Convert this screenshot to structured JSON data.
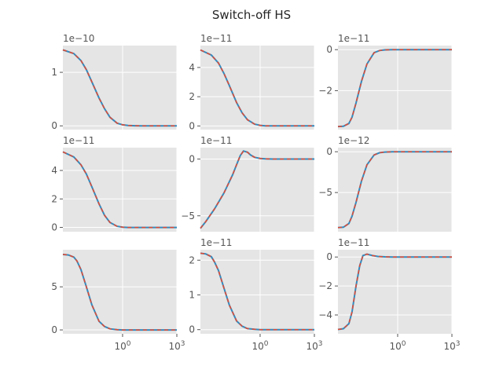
{
  "figure": {
    "suptitle": "Switch-off HS"
  },
  "colors": {
    "background": "#e5e5e5",
    "grid": "#ffffff",
    "solid": "#348abd",
    "dashed": "#e24a33",
    "text": "#555555"
  },
  "chart_data": [
    {
      "type": "line",
      "offset": "1e−10",
      "xscale": "log",
      "xlim": [
        0.0005,
        1000
      ],
      "ylim": [
        -0.07,
        1.5
      ],
      "yticks": [
        {
          "v": 0,
          "label": "0"
        },
        {
          "v": 1,
          "label": "1"
        }
      ],
      "xticks": [],
      "x": [
        0.0005,
        0.002,
        0.005,
        0.01,
        0.02,
        0.05,
        0.1,
        0.2,
        0.5,
        1,
        2,
        5,
        10,
        100,
        1000
      ],
      "series": [
        {
          "values": [
            1.42,
            1.35,
            1.22,
            1.05,
            0.82,
            0.52,
            0.32,
            0.16,
            0.05,
            0.02,
            0.006,
            0.002,
            0.0,
            0.0,
            0.0
          ]
        }
      ]
    },
    {
      "type": "line",
      "offset": "1e−11",
      "xscale": "log",
      "xlim": [
        0.0005,
        1000
      ],
      "ylim": [
        -0.25,
        5.5
      ],
      "yticks": [
        {
          "v": 0,
          "label": "0"
        },
        {
          "v": 2,
          "label": "2"
        },
        {
          "v": 4,
          "label": "4"
        }
      ],
      "xticks": [],
      "x": [
        0.0005,
        0.002,
        0.005,
        0.01,
        0.02,
        0.05,
        0.1,
        0.2,
        0.5,
        1,
        2,
        5,
        10,
        100,
        1000
      ],
      "series": [
        {
          "values": [
            5.2,
            4.85,
            4.3,
            3.6,
            2.75,
            1.6,
            0.9,
            0.42,
            0.12,
            0.04,
            0.01,
            0.0,
            0.0,
            0.0,
            0.0
          ]
        }
      ]
    },
    {
      "type": "line",
      "offset": "1e−11",
      "xscale": "log",
      "xlim": [
        0.0005,
        1000
      ],
      "ylim": [
        -3.9,
        0.2
      ],
      "yticks": [
        {
          "v": -2,
          "label": "−2"
        },
        {
          "v": 0,
          "label": "0"
        }
      ],
      "xticks": [],
      "x": [
        0.0005,
        0.001,
        0.002,
        0.003,
        0.005,
        0.01,
        0.02,
        0.05,
        0.1,
        0.2,
        0.5,
        1,
        10,
        100,
        1000
      ],
      "series": [
        {
          "values": [
            -3.75,
            -3.74,
            -3.6,
            -3.3,
            -2.6,
            -1.55,
            -0.7,
            -0.15,
            -0.04,
            -0.01,
            0.0,
            0.0,
            0.0,
            0.0,
            0.0
          ]
        }
      ]
    },
    {
      "type": "line",
      "offset": "1e−11",
      "xscale": "log",
      "xlim": [
        0.0005,
        1000
      ],
      "ylim": [
        -0.3,
        5.6
      ],
      "yticks": [
        {
          "v": 0,
          "label": "0"
        },
        {
          "v": 2,
          "label": "2"
        },
        {
          "v": 4,
          "label": "4"
        }
      ],
      "xticks": [],
      "x": [
        0.0005,
        0.002,
        0.005,
        0.01,
        0.02,
        0.05,
        0.1,
        0.2,
        0.5,
        1,
        2,
        5,
        10,
        100,
        1000
      ],
      "series": [
        {
          "values": [
            5.3,
            4.95,
            4.4,
            3.75,
            2.85,
            1.65,
            0.85,
            0.35,
            0.08,
            0.02,
            0.0,
            0.0,
            0.0,
            0.0,
            0.0
          ]
        }
      ]
    },
    {
      "type": "line",
      "offset": "1e−11",
      "xscale": "log",
      "xlim": [
        0.0005,
        1000
      ],
      "ylim": [
        -6.4,
        1.0
      ],
      "yticks": [
        {
          "v": -5,
          "label": "−5"
        },
        {
          "v": 0,
          "label": "0"
        }
      ],
      "xticks": [],
      "x": [
        0.0005,
        0.001,
        0.003,
        0.01,
        0.03,
        0.05,
        0.08,
        0.12,
        0.2,
        0.3,
        0.5,
        1,
        2,
        5,
        10,
        100,
        1000
      ],
      "series": [
        {
          "values": [
            -6.1,
            -5.5,
            -4.4,
            -3.0,
            -1.4,
            -0.5,
            0.3,
            0.7,
            0.6,
            0.35,
            0.15,
            0.05,
            0.02,
            0.0,
            0.0,
            0.0,
            0.0
          ]
        }
      ]
    },
    {
      "type": "line",
      "offset": "1e−12",
      "xscale": "log",
      "xlim": [
        0.0005,
        1000
      ],
      "ylim": [
        -9.8,
        0.5
      ],
      "yticks": [
        {
          "v": -5,
          "label": "−5"
        },
        {
          "v": 0,
          "label": "0"
        }
      ],
      "xticks": [],
      "x": [
        0.0005,
        0.001,
        0.002,
        0.003,
        0.005,
        0.01,
        0.02,
        0.05,
        0.1,
        0.2,
        0.5,
        1,
        10,
        100,
        1000
      ],
      "series": [
        {
          "values": [
            -9.3,
            -9.25,
            -8.8,
            -7.9,
            -6.2,
            -3.6,
            -1.6,
            -0.4,
            -0.12,
            -0.04,
            -0.01,
            0.0,
            0.0,
            0.0,
            0.0
          ]
        }
      ]
    },
    {
      "type": "line",
      "offset": "",
      "xscale": "log",
      "xlim": [
        0.0005,
        1000
      ],
      "ylim": [
        -0.45,
        9.3
      ],
      "yticks": [
        {
          "v": 0,
          "label": "0"
        },
        {
          "v": 5,
          "label": "5"
        }
      ],
      "xticks": [
        {
          "v": 1,
          "label": "10^0"
        },
        {
          "v": 1000,
          "label": "10^3"
        }
      ],
      "x": [
        0.0005,
        0.001,
        0.002,
        0.003,
        0.005,
        0.01,
        0.02,
        0.05,
        0.1,
        0.2,
        0.5,
        1,
        10,
        100,
        1000
      ],
      "series": [
        {
          "values": [
            8.75,
            8.7,
            8.45,
            8.0,
            7.0,
            5.0,
            2.9,
            1.0,
            0.4,
            0.12,
            0.02,
            0.0,
            0.0,
            0.0,
            0.0
          ]
        }
      ]
    },
    {
      "type": "line",
      "offset": "1e−11",
      "xscale": "log",
      "xlim": [
        0.0005,
        1000
      ],
      "ylim": [
        -0.12,
        2.3
      ],
      "yticks": [
        {
          "v": 0,
          "label": "0"
        },
        {
          "v": 1,
          "label": "1"
        },
        {
          "v": 2,
          "label": "2"
        }
      ],
      "xticks": [
        {
          "v": 1,
          "label": "10^0"
        },
        {
          "v": 1000,
          "label": "10^3"
        }
      ],
      "x": [
        0.0005,
        0.001,
        0.002,
        0.003,
        0.005,
        0.01,
        0.02,
        0.05,
        0.1,
        0.2,
        0.5,
        1,
        10,
        100,
        1000
      ],
      "series": [
        {
          "values": [
            2.2,
            2.18,
            2.1,
            1.95,
            1.7,
            1.2,
            0.7,
            0.25,
            0.1,
            0.03,
            0.01,
            0.0,
            0.0,
            0.0,
            0.0
          ]
        }
      ]
    },
    {
      "type": "line",
      "offset": "1e−11",
      "xscale": "log",
      "xlim": [
        0.0005,
        1000
      ],
      "ylim": [
        -5.3,
        0.5
      ],
      "yticks": [
        {
          "v": -4,
          "label": "−4"
        },
        {
          "v": -2,
          "label": "−2"
        },
        {
          "v": 0,
          "label": "0"
        }
      ],
      "xticks": [
        {
          "v": 1,
          "label": "10^0"
        },
        {
          "v": 1000,
          "label": "10^3"
        }
      ],
      "x": [
        0.0005,
        0.001,
        0.002,
        0.003,
        0.005,
        0.008,
        0.012,
        0.02,
        0.04,
        0.08,
        0.2,
        0.5,
        1,
        10,
        100,
        1000
      ],
      "series": [
        {
          "values": [
            -5.0,
            -4.95,
            -4.6,
            -3.8,
            -2.0,
            -0.6,
            0.1,
            0.2,
            0.1,
            0.04,
            0.01,
            0.0,
            0.0,
            0.0,
            0.0,
            0.0
          ]
        }
      ]
    }
  ]
}
